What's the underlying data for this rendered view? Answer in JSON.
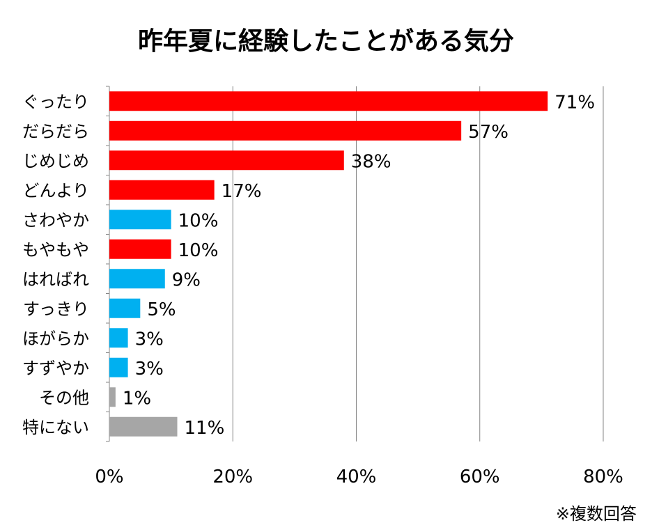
{
  "chart_data": {
    "type": "bar",
    "orientation": "horizontal",
    "title": "昨年夏に経験したことがある気分",
    "categories": [
      "ぐったり",
      "だらだら",
      "じめじめ",
      "どんより",
      "さわやか",
      "もやもや",
      "はればれ",
      "すっきり",
      "ほがらか",
      "すずやか",
      "その他",
      "特にない"
    ],
    "values": [
      71,
      57,
      38,
      17,
      10,
      10,
      9,
      5,
      3,
      3,
      1,
      11
    ],
    "value_labels": [
      "71%",
      "57%",
      "38%",
      "17%",
      "10%",
      "10%",
      "9%",
      "5%",
      "3%",
      "3%",
      "1%",
      "11%"
    ],
    "bar_colors": [
      "#ff0000",
      "#ff0000",
      "#ff0000",
      "#ff0000",
      "#00b0f0",
      "#ff0000",
      "#00b0f0",
      "#00b0f0",
      "#00b0f0",
      "#00b0f0",
      "#a6a6a6",
      "#a6a6a6"
    ],
    "xlim": [
      0,
      80
    ],
    "xticks": [
      0,
      20,
      40,
      60,
      80
    ],
    "xtick_labels": [
      "0%",
      "20%",
      "40%",
      "60%",
      "80%"
    ],
    "grid": "vertical",
    "legend": "none"
  },
  "footnote": "※複数回答"
}
